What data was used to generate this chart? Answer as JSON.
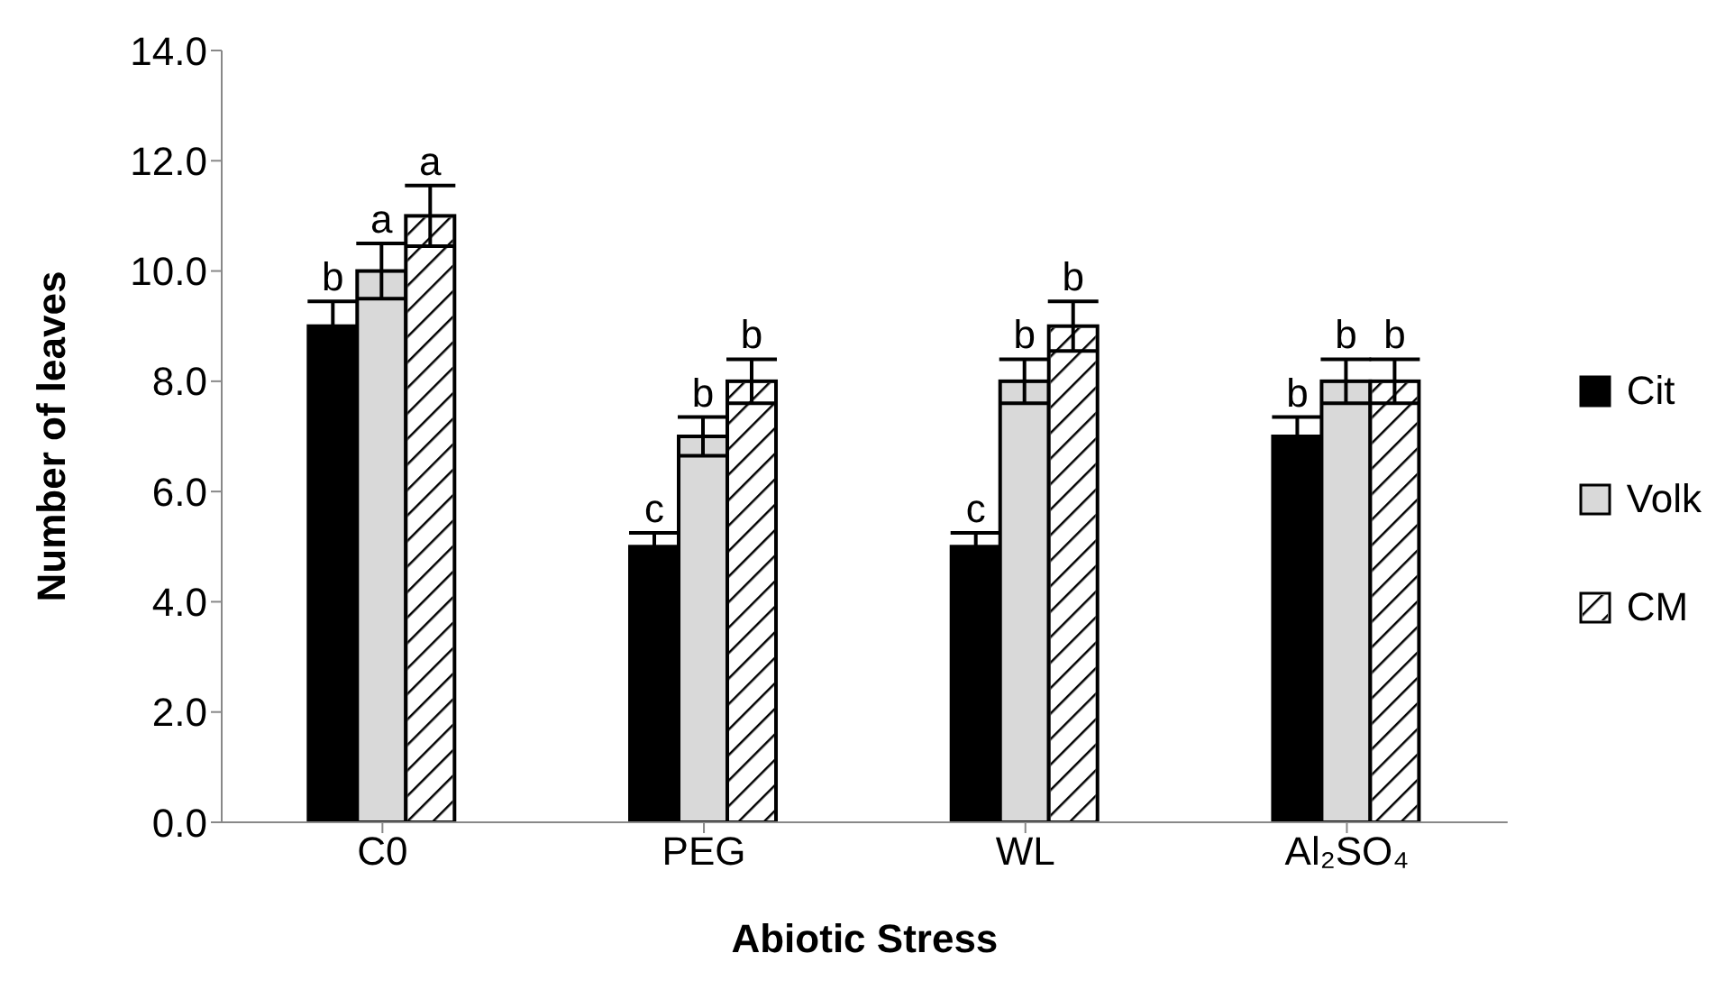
{
  "chart_data": {
    "type": "bar",
    "xlabel": "Abiotic Stress",
    "ylabel": "Number of leaves",
    "categories": [
      "C0",
      "PEG",
      "WL",
      "Al₂SO₄"
    ],
    "series": [
      {
        "name": "Cit",
        "color": "#000000",
        "values": [
          9,
          5,
          5,
          7
        ],
        "errors": [
          0.45,
          0.25,
          0.25,
          0.35
        ],
        "value_labels": [
          "b",
          "c",
          "c",
          "b"
        ]
      },
      {
        "name": "Volk",
        "color": "#d9d9d9",
        "values": [
          10,
          7,
          8,
          8
        ],
        "errors": [
          0.5,
          0.35,
          0.4,
          0.4
        ],
        "value_labels": [
          "a",
          "b",
          "b",
          "b"
        ]
      },
      {
        "name": "CM",
        "color": "#ffffff",
        "values": [
          11,
          8,
          9,
          8
        ],
        "errors": [
          0.55,
          0.4,
          0.45,
          0.4
        ],
        "value_labels": [
          "a",
          "b",
          "b",
          "b"
        ]
      }
    ],
    "ylim": [
      0,
      14
    ],
    "yticks": [
      {
        "value": 0,
        "label": "0.0"
      },
      {
        "value": 2,
        "label": "2.0"
      },
      {
        "value": 4,
        "label": "4.0"
      },
      {
        "value": 6,
        "label": "6.0"
      },
      {
        "value": 8,
        "label": "8.0"
      },
      {
        "value": 10,
        "label": "10.0"
      },
      {
        "value": 12,
        "label": "12.0"
      },
      {
        "value": 14,
        "label": "14.0"
      }
    ],
    "grid": false,
    "legend": "right"
  }
}
